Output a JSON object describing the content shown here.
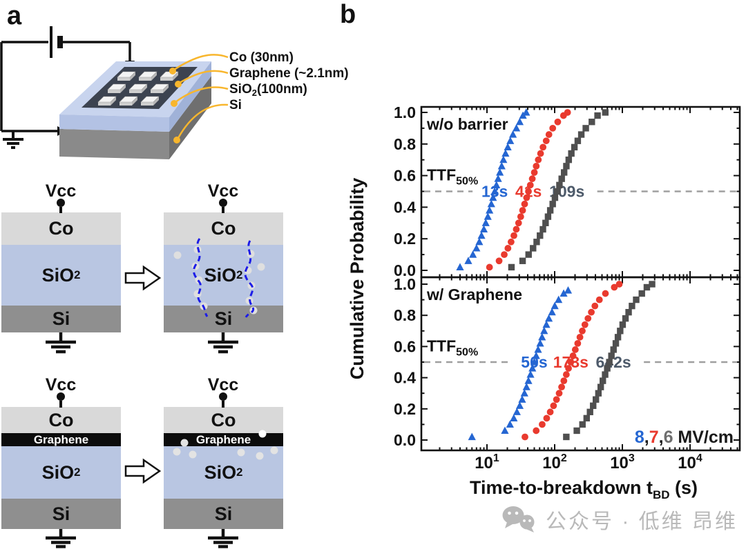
{
  "figure": {
    "panel_a": "a",
    "panel_b": "b"
  },
  "colors": {
    "series_blue": "#2566d2",
    "series_red": "#e93a2e",
    "series_gray": "#4f4f4f",
    "median_gray_text": "#4d5a6a",
    "dashed_line": "#9f9f9f",
    "co_layer": "#d9d9d9",
    "sio2_layer": "#b9c6e2",
    "si_layer": "#8f8f8f",
    "graphene_layer": "#0c0c0c",
    "leader_line": "#f8b62d",
    "breakdown_path": "#1c1ce8",
    "watermark": "#b9b9b9"
  },
  "schematic": {
    "leader_labels": [
      {
        "id": "co",
        "text": "Co (30nm)"
      },
      {
        "id": "graphene",
        "text": "Graphene (~2.1nm)"
      },
      {
        "id": "sio2",
        "main": "SiO",
        "sub": "2",
        "rest": "(100nm)"
      },
      {
        "id": "si",
        "text": "Si"
      }
    ]
  },
  "stacks": {
    "vcc": "Vcc",
    "layers": {
      "co": "Co",
      "sio2_main": "SiO",
      "sio2_sub": "2",
      "si": "Si",
      "graphene": "Graphene"
    }
  },
  "watermark": {
    "text": "公众号 · 低维 昂维"
  },
  "chart_data": {
    "type": "scatter",
    "x_scale": "log",
    "xlim": [
      1,
      50000
    ],
    "xticks": [
      10,
      100,
      1000,
      10000
    ],
    "xlabel": {
      "main": "Time-to-breakdown t",
      "sub": "BD",
      "end": " (s)"
    },
    "ylabel": "Cumulative Probability",
    "ylim": [
      0,
      1
    ],
    "ytick_step": 0.2,
    "grid": false,
    "legend": {
      "position": "bottom-right",
      "segments": [
        {
          "text": "8",
          "color": "#2566d2"
        },
        {
          "text": ",",
          "color": "#1a1a1a"
        },
        {
          "text": "7",
          "color": "#e93a2e"
        },
        {
          "text": ",",
          "color": "#1a1a1a"
        },
        {
          "text": "6",
          "color": "#6e6e6e"
        },
        {
          "text": " MV/cm",
          "color": "#1a1a1a"
        }
      ]
    },
    "median_line": {
      "p": 0.5,
      "color": "#9f9f9f"
    },
    "panels": [
      {
        "label": "w/o barrier",
        "ttf": {
          "main": "TTF",
          "sub": "50%"
        },
        "median_labels": [
          {
            "text": "13s",
            "value": 13,
            "color": "#2566d2",
            "dx": 0
          },
          {
            "text": "41s",
            "value": 41,
            "color": "#e93a2e",
            "dx": 0
          },
          {
            "text": "109s",
            "value": 109,
            "color": "#4d5a6a",
            "dx": 14
          }
        ],
        "series": [
          {
            "name": "8 MV/cm",
            "marker": "triangle",
            "color": "#2566d2",
            "points": [
              [
                4.0,
                0.02
              ],
              [
                5.3,
                0.06
              ],
              [
                6.2,
                0.1
              ],
              [
                7.0,
                0.14
              ],
              [
                7.7,
                0.18
              ],
              [
                8.3,
                0.22
              ],
              [
                9.0,
                0.26
              ],
              [
                9.6,
                0.3
              ],
              [
                10.3,
                0.34
              ],
              [
                10.9,
                0.38
              ],
              [
                11.6,
                0.42
              ],
              [
                12.3,
                0.46
              ],
              [
                13,
                0.5
              ],
              [
                13.8,
                0.54
              ],
              [
                14.6,
                0.58
              ],
              [
                15.5,
                0.62
              ],
              [
                16.5,
                0.66
              ],
              [
                17.5,
                0.7
              ],
              [
                18.8,
                0.74
              ],
              [
                20.3,
                0.78
              ],
              [
                22.1,
                0.82
              ],
              [
                24.2,
                0.86
              ],
              [
                27.2,
                0.9
              ],
              [
                30.5,
                0.94
              ],
              [
                34,
                0.98
              ],
              [
                38,
                1.0
              ]
            ]
          },
          {
            "name": "7 MV/cm",
            "marker": "circle",
            "color": "#e93a2e",
            "points": [
              [
                10.9,
                0.02
              ],
              [
                15.1,
                0.06
              ],
              [
                18,
                0.1
              ],
              [
                20.4,
                0.14
              ],
              [
                22.7,
                0.18
              ],
              [
                25,
                0.22
              ],
              [
                27.1,
                0.26
              ],
              [
                29.3,
                0.3
              ],
              [
                31.5,
                0.34
              ],
              [
                33.6,
                0.38
              ],
              [
                36,
                0.42
              ],
              [
                38.5,
                0.46
              ],
              [
                41,
                0.5
              ],
              [
                43.7,
                0.54
              ],
              [
                46.7,
                0.58
              ],
              [
                50.1,
                0.62
              ],
              [
                53.4,
                0.66
              ],
              [
                57.3,
                0.7
              ],
              [
                61.9,
                0.74
              ],
              [
                67.3,
                0.78
              ],
              [
                75,
                0.82
              ],
              [
                82.3,
                0.86
              ],
              [
                93.6,
                0.9
              ],
              [
                111,
                0.94
              ],
              [
                135,
                0.98
              ],
              [
                155,
                1.0
              ]
            ]
          },
          {
            "name": "6 MV/cm",
            "marker": "square",
            "color": "#4f4f4f",
            "points": [
              [
                23,
                0.02
              ],
              [
                33.6,
                0.06
              ],
              [
                41.2,
                0.1
              ],
              [
                48,
                0.14
              ],
              [
                54.2,
                0.18
              ],
              [
                60.7,
                0.22
              ],
              [
                67.1,
                0.26
              ],
              [
                73.4,
                0.3
              ],
              [
                79.8,
                0.34
              ],
              [
                86.1,
                0.38
              ],
              [
                93.6,
                0.42
              ],
              [
                101,
                0.46
              ],
              [
                109,
                0.5
              ],
              [
                117.6,
                0.54
              ],
              [
                127.1,
                0.58
              ],
              [
                138,
                0.62
              ],
              [
                148.9,
                0.66
              ],
              [
                161.3,
                0.7
              ],
              [
                176.4,
                0.74
              ],
              [
                195.8,
                0.78
              ],
              [
                219.3,
                0.82
              ],
              [
                247.5,
                0.86
              ],
              [
                288.3,
                0.9
              ],
              [
                354,
                0.94
              ],
              [
                430,
                0.98
              ],
              [
                560,
                1.0
              ]
            ]
          }
        ]
      },
      {
        "label": "w/ Graphene",
        "ttf": {
          "main": "TTF",
          "sub": "50%"
        },
        "median_labels": [
          {
            "text": "50s",
            "value": 50,
            "color": "#2566d2",
            "dx": 0
          },
          {
            "text": "173s",
            "value": 173,
            "color": "#e93a2e",
            "dx": 0
          },
          {
            "text": "642s",
            "value": 642,
            "color": "#4d5a6a",
            "dx": 6
          }
        ],
        "series": [
          {
            "name": "8 MV/cm",
            "marker": "triangle",
            "color": "#2566d2",
            "points": [
              [
                6,
                0.02
              ],
              [
                18.4,
                0.06
              ],
              [
                21.9,
                0.1
              ],
              [
                24.9,
                0.14
              ],
              [
                27.7,
                0.18
              ],
              [
                30.5,
                0.22
              ],
              [
                33.1,
                0.26
              ],
              [
                35.8,
                0.3
              ],
              [
                38.4,
                0.34
              ],
              [
                41,
                0.38
              ],
              [
                44,
                0.42
              ],
              [
                46.9,
                0.46
              ],
              [
                50,
                0.5
              ],
              [
                53.3,
                0.54
              ],
              [
                56.9,
                0.58
              ],
              [
                61.1,
                0.62
              ],
              [
                65.1,
                0.66
              ],
              [
                69.9,
                0.7
              ],
              [
                75.5,
                0.74
              ],
              [
                82.1,
                0.78
              ],
              [
                91.4,
                0.82
              ],
              [
                100.4,
                0.86
              ],
              [
                114.2,
                0.9
              ],
              [
                135.9,
                0.94
              ],
              [
                158,
                0.96
              ]
            ]
          },
          {
            "name": "7 MV/cm",
            "marker": "circle",
            "color": "#e93a2e",
            "points": [
              [
                36.4,
                0.02
              ],
              [
                53.3,
                0.06
              ],
              [
                65.4,
                0.1
              ],
              [
                76.2,
                0.14
              ],
              [
                86,
                0.18
              ],
              [
                96.3,
                0.22
              ],
              [
                106.4,
                0.26
              ],
              [
                116.5,
                0.3
              ],
              [
                126.7,
                0.34
              ],
              [
                136.7,
                0.38
              ],
              [
                148.6,
                0.42
              ],
              [
                160.3,
                0.46
              ],
              [
                173,
                0.5
              ],
              [
                186.7,
                0.54
              ],
              [
                201.7,
                0.58
              ],
              [
                219,
                0.62
              ],
              [
                236.3,
                0.66
              ],
              [
                256,
                0.7
              ],
              [
                279.9,
                0.74
              ],
              [
                310.7,
                0.78
              ],
              [
                348.1,
                0.82
              ],
              [
                392.9,
                0.86
              ],
              [
                457.6,
                0.9
              ],
              [
                562,
                0.94
              ],
              [
                760,
                0.98
              ],
              [
                900,
                1.0
              ]
            ]
          },
          {
            "name": "6 MV/cm",
            "marker": "square",
            "color": "#4f4f4f",
            "points": [
              [
                148.6,
                0.02
              ],
              [
                212.4,
                0.06
              ],
              [
                257.5,
                0.1
              ],
              [
                296.9,
                0.14
              ],
              [
                332.9,
                0.18
              ],
              [
                370.5,
                0.22
              ],
              [
                406.6,
                0.26
              ],
              [
                442.9,
                0.3
              ],
              [
                479,
                0.34
              ],
              [
                514.6,
                0.38
              ],
              [
                556.6,
                0.42
              ],
              [
                597.8,
                0.46
              ],
              [
                642,
                0.5
              ],
              [
                689.5,
                0.54
              ],
              [
                740.9,
                0.58
              ],
              [
                800.6,
                0.62
              ],
              [
                860.3,
                0.66
              ],
              [
                928.3,
                0.7
              ],
              [
                1009.9,
                0.74
              ],
              [
                1112.6,
                0.78
              ],
              [
                1237.1,
                0.82
              ],
              [
                1386.7,
                0.86
              ],
              [
                1600.5,
                0.9
              ],
              [
                1940.8,
                0.94
              ],
              [
                2300,
                0.98
              ],
              [
                2750,
                1.0
              ]
            ]
          }
        ]
      }
    ]
  }
}
